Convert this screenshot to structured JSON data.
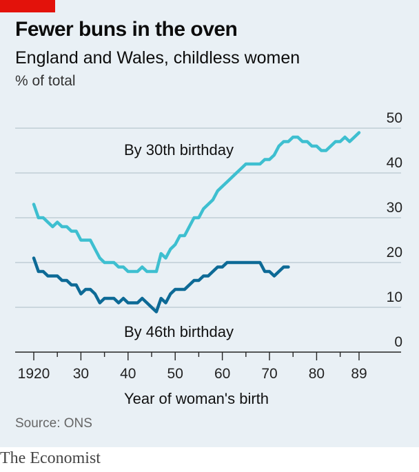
{
  "header": {
    "title": "Fewer buns in the oven",
    "subtitle": "England and Wales, childless women",
    "unit": "% of total"
  },
  "footer": {
    "source": "Source: ONS",
    "brand": "The Economist"
  },
  "colors": {
    "background": "#e9f0f5",
    "accent_red": "#e3120b",
    "series_30": "#3ebfd0",
    "series_46": "#0d6a96",
    "grid": "#b7c6cf",
    "axis": "#222222"
  },
  "chart_data": {
    "type": "line",
    "xlabel": "Year of woman's birth",
    "ylabel": "",
    "xlim": [
      1920,
      1989
    ],
    "ylim": [
      0,
      50
    ],
    "yticks": [
      0,
      10,
      20,
      30,
      40,
      50
    ],
    "ytick_labels": [
      "0",
      "10",
      "20",
      "30",
      "40",
      "50"
    ],
    "xtick_values": [
      1920,
      1930,
      1940,
      1950,
      1960,
      1970,
      1980,
      1989
    ],
    "xtick_labels": [
      "1920",
      "30",
      "40",
      "50",
      "60",
      "70",
      "80",
      "89"
    ],
    "grid": true,
    "y_axis_side": "right",
    "series": [
      {
        "name": "By 30th birthday",
        "color": "#3ebfd0",
        "x": [
          1920,
          1921,
          1922,
          1923,
          1924,
          1925,
          1926,
          1927,
          1928,
          1929,
          1930,
          1931,
          1932,
          1933,
          1934,
          1935,
          1936,
          1937,
          1938,
          1939,
          1940,
          1941,
          1942,
          1943,
          1944,
          1945,
          1946,
          1947,
          1948,
          1949,
          1950,
          1951,
          1952,
          1953,
          1954,
          1955,
          1956,
          1957,
          1958,
          1959,
          1960,
          1961,
          1962,
          1963,
          1964,
          1965,
          1966,
          1967,
          1968,
          1969,
          1970,
          1971,
          1972,
          1973,
          1974,
          1975,
          1976,
          1977,
          1978,
          1979,
          1980,
          1981,
          1982,
          1983,
          1984,
          1985,
          1986,
          1987,
          1988,
          1989
        ],
        "values": [
          33,
          30,
          30,
          29,
          28,
          29,
          28,
          28,
          27,
          27,
          25,
          25,
          25,
          23,
          21,
          20,
          20,
          20,
          19,
          19,
          18,
          18,
          18,
          19,
          18,
          18,
          18,
          22,
          21,
          23,
          24,
          26,
          26,
          28,
          30,
          30,
          32,
          33,
          34,
          36,
          37,
          38,
          39,
          40,
          41,
          42,
          42,
          42,
          42,
          43,
          43,
          44,
          46,
          47,
          47,
          48,
          48,
          47,
          47,
          46,
          46,
          45,
          45,
          46,
          47,
          47,
          48,
          47,
          48,
          49
        ]
      },
      {
        "name": "By 46th birthday",
        "color": "#0d6a96",
        "x": [
          1920,
          1921,
          1922,
          1923,
          1924,
          1925,
          1926,
          1927,
          1928,
          1929,
          1930,
          1931,
          1932,
          1933,
          1934,
          1935,
          1936,
          1937,
          1938,
          1939,
          1940,
          1941,
          1942,
          1943,
          1944,
          1945,
          1946,
          1947,
          1948,
          1949,
          1950,
          1951,
          1952,
          1953,
          1954,
          1955,
          1956,
          1957,
          1958,
          1959,
          1960,
          1961,
          1962,
          1963,
          1964,
          1965,
          1966,
          1967,
          1968,
          1969,
          1970,
          1971,
          1972,
          1973,
          1974
        ],
        "values": [
          21,
          18,
          18,
          17,
          17,
          17,
          16,
          16,
          15,
          15,
          13,
          14,
          14,
          13,
          11,
          12,
          12,
          12,
          11,
          12,
          11,
          11,
          11,
          12,
          11,
          10,
          9,
          12,
          11,
          13,
          14,
          14,
          14,
          15,
          16,
          16,
          17,
          17,
          18,
          19,
          19,
          20,
          20,
          20,
          20,
          20,
          20,
          20,
          20,
          18,
          18,
          17,
          18,
          19,
          19
        ]
      }
    ],
    "annotations": [
      {
        "text": "By 30th birthday",
        "series": 0
      },
      {
        "text": "By 46th birthday",
        "series": 1
      }
    ]
  }
}
